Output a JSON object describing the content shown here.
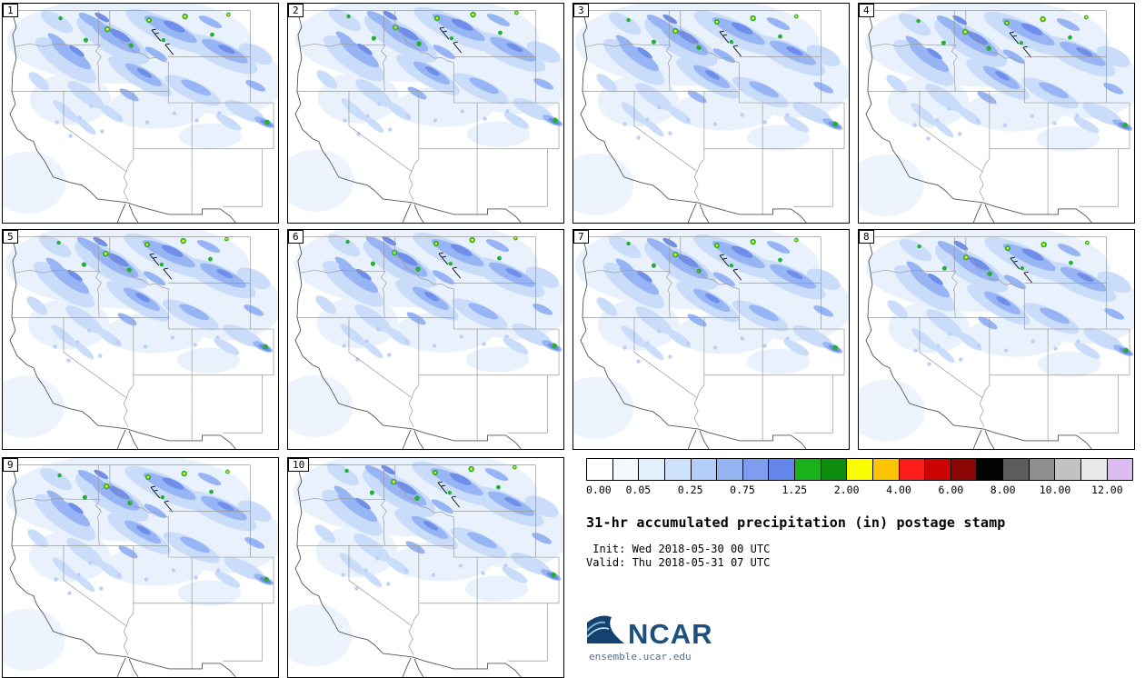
{
  "members": [
    "1",
    "2",
    "3",
    "4",
    "5",
    "6",
    "7",
    "8",
    "9",
    "10"
  ],
  "colorbar": {
    "colors": [
      "#ffffff",
      "#f3f9fe",
      "#e2effc",
      "#cde1fa",
      "#b2cdf7",
      "#95b5f2",
      "#7d9def",
      "#6485e9",
      "#1ab21a",
      "#0e8c0e",
      "#fcfc02",
      "#fdc404",
      "#fc1c1c",
      "#cc0404",
      "#8c0404",
      "#040404",
      "#5c5c5c",
      "#8e8e8e",
      "#c2c2c2",
      "#e9e9e9",
      "#ddbcf4"
    ],
    "ticks": [
      "0.00",
      "0.05",
      "0.25",
      "0.75",
      "1.25",
      "2.00",
      "4.00",
      "6.00",
      "8.00",
      "10.00",
      "12.00"
    ]
  },
  "caption": {
    "title": "31-hr accumulated precipitation (in) postage stamp",
    "init": " Init: Wed 2018-05-30 00 UTC",
    "valid": "Valid: Thu 2018-05-31 07 UTC"
  },
  "branding": {
    "name": "NCAR",
    "site": "ensemble.ucar.edu"
  }
}
